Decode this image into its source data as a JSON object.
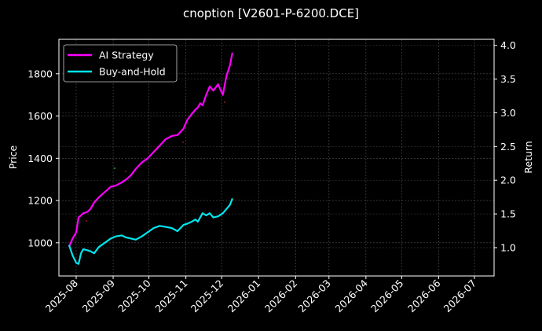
{
  "title": "cnoption [V2601-P-6200.DCE]",
  "chart_data": {
    "type": "line",
    "title": "cnoption [V2601-P-6200.DCE]",
    "xlabel": "",
    "ylabel": "Price",
    "ylabel_right": "Return",
    "ylim": [
      843,
      1963
    ],
    "ylim_right": [
      0.58,
      4.09
    ],
    "grid": true,
    "legend_position": "upper left",
    "x_ticks": [
      "2025-08",
      "2025-09",
      "2025-10",
      "2025-11",
      "2025-12",
      "2026-01",
      "2026-02",
      "2026-03",
      "2026-04",
      "2026-05",
      "2026-06",
      "2026-07"
    ],
    "y_ticks": [
      1000,
      1200,
      1400,
      1600,
      1800
    ],
    "y_ticks_right": [
      "1.0",
      "1.5",
      "2.0",
      "2.5",
      "3.0",
      "3.5",
      "4.0"
    ],
    "series": [
      {
        "name": "AI Strategy",
        "color": "#ff00ff",
        "x": [
          "2025-07-26",
          "2025-07-29",
          "2025-08-01",
          "2025-08-03",
          "2025-08-05",
          "2025-08-07",
          "2025-08-10",
          "2025-08-13",
          "2025-08-16",
          "2025-08-20",
          "2025-08-25",
          "2025-08-30",
          "2025-09-03",
          "2025-09-08",
          "2025-09-12",
          "2025-09-16",
          "2025-09-20",
          "2025-09-25",
          "2025-09-30",
          "2025-10-05",
          "2025-10-10",
          "2025-10-15",
          "2025-10-20",
          "2025-10-25",
          "2025-10-30",
          "2025-11-02",
          "2025-11-06",
          "2025-11-09",
          "2025-11-11",
          "2025-11-13",
          "2025-11-15",
          "2025-11-18",
          "2025-11-21",
          "2025-11-24",
          "2025-11-28",
          "2025-12-02",
          "2025-12-05",
          "2025-12-08",
          "2025-12-10"
        ],
        "values": [
          980,
          1020,
          1050,
          1120,
          1130,
          1140,
          1145,
          1160,
          1190,
          1215,
          1240,
          1265,
          1270,
          1285,
          1300,
          1320,
          1350,
          1380,
          1400,
          1430,
          1460,
          1490,
          1505,
          1510,
          1540,
          1580,
          1610,
          1630,
          1640,
          1660,
          1650,
          1700,
          1740,
          1720,
          1750,
          1700,
          1790,
          1840,
          1900
        ]
      },
      {
        "name": "Buy-and-Hold",
        "color": "#00e5ee",
        "x": [
          "2025-07-26",
          "2025-07-29",
          "2025-08-01",
          "2025-08-03",
          "2025-08-05",
          "2025-08-07",
          "2025-08-10",
          "2025-08-13",
          "2025-08-16",
          "2025-08-20",
          "2025-08-25",
          "2025-08-30",
          "2025-09-03",
          "2025-09-08",
          "2025-09-12",
          "2025-09-16",
          "2025-09-20",
          "2025-09-25",
          "2025-09-30",
          "2025-10-05",
          "2025-10-10",
          "2025-10-15",
          "2025-10-20",
          "2025-10-25",
          "2025-10-30",
          "2025-11-02",
          "2025-11-06",
          "2025-11-09",
          "2025-11-11",
          "2025-11-13",
          "2025-11-15",
          "2025-11-18",
          "2025-11-21",
          "2025-11-24",
          "2025-11-28",
          "2025-12-02",
          "2025-12-05",
          "2025-12-08",
          "2025-12-10"
        ],
        "values": [
          990,
          940,
          905,
          900,
          950,
          970,
          965,
          960,
          950,
          980,
          1000,
          1020,
          1030,
          1035,
          1025,
          1020,
          1015,
          1030,
          1050,
          1070,
          1080,
          1075,
          1070,
          1055,
          1085,
          1090,
          1100,
          1110,
          1100,
          1120,
          1140,
          1130,
          1140,
          1120,
          1125,
          1140,
          1160,
          1180,
          1210
        ]
      }
    ]
  },
  "legend": {
    "items": [
      {
        "label": "AI Strategy",
        "color": "#ff00ff"
      },
      {
        "label": "Buy-and-Hold",
        "color": "#00e5ee"
      }
    ]
  },
  "axes": {
    "left_label": "Price",
    "right_label": "Return"
  }
}
